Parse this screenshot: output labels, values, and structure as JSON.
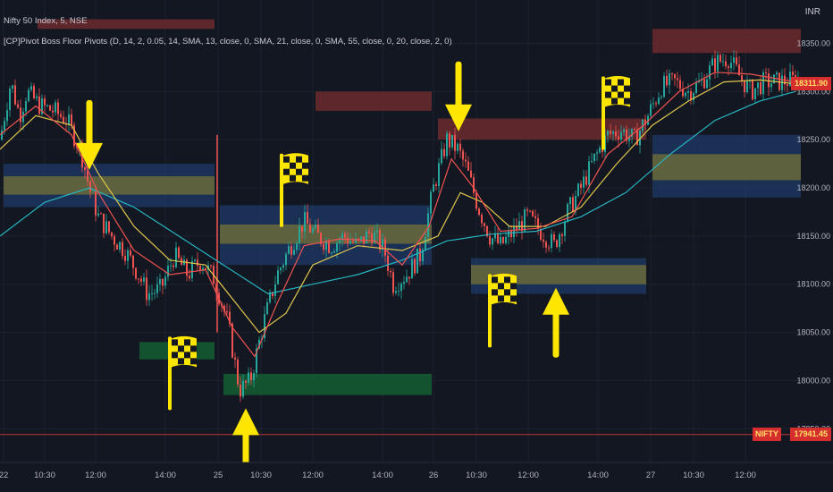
{
  "header": {
    "title": "Nifty 50 Index, 5, NSE",
    "indicator": "[CP]Pivot Boss Floor Pivots (D, 14, 2, 0.05, 14, SMA, 13, close, 0, SMA, 21, close, 0, SMA, 55, close, 0, 20, close, 2, 0)"
  },
  "currency_label": "INR",
  "current_price_label": "18311.90",
  "last_price": {
    "symbol": "NIFTY",
    "value": "17941.45"
  },
  "colors": {
    "background": "#131722",
    "up_candle": "#26a69a",
    "down_candle": "#ef5350",
    "ma_fast": "#ef5350",
    "ma_mid": "#e0c64b",
    "ma_slow": "#26b5c0",
    "annotation": "#ffe600",
    "pivot_blue": "#1e3a66",
    "pivot_yellow": "#6b6a3a",
    "pivot_red": "#6b2a2e",
    "pivot_green": "#145a32"
  },
  "chart_data": {
    "type": "candlestick",
    "symbol": "Nifty 50 Index",
    "interval": "5",
    "exchange": "NSE",
    "y_axis": {
      "ticks": [
        18350,
        18300,
        18250,
        18200,
        18150,
        18100,
        18050,
        18000,
        17950
      ],
      "tick_labels": [
        "18350.00",
        "18300.00",
        "18250.00",
        "18200.00",
        "18150.00",
        "18100.00",
        "18050.00",
        "18000.00",
        "17950.00"
      ],
      "range": [
        17915,
        18395
      ]
    },
    "x_axis": {
      "tick_labels": [
        "22",
        "10:30",
        "12:00",
        "14:00",
        "25",
        "10:30",
        "12:00",
        "14:00",
        "26",
        "10:30",
        "12:00",
        "14:00",
        "27",
        "10:30",
        "12:00"
      ]
    },
    "close_path": [
      [
        0,
        18250
      ],
      [
        12,
        18310
      ],
      [
        22,
        18275
      ],
      [
        30,
        18300
      ],
      [
        45,
        18285
      ],
      [
        60,
        18280
      ],
      [
        75,
        18270
      ],
      [
        90,
        18240
      ],
      [
        100,
        18200
      ],
      [
        110,
        18170
      ],
      [
        125,
        18150
      ],
      [
        140,
        18135
      ],
      [
        155,
        18110
      ],
      [
        165,
        18090
      ],
      [
        180,
        18095
      ],
      [
        195,
        18130
      ],
      [
        210,
        18110
      ],
      [
        225,
        18125
      ],
      [
        240,
        18105
      ],
      [
        255,
        18060
      ],
      [
        268,
        17990
      ],
      [
        280,
        18000
      ],
      [
        295,
        18060
      ],
      [
        310,
        18110
      ],
      [
        325,
        18140
      ],
      [
        340,
        18165
      ],
      [
        355,
        18150
      ],
      [
        370,
        18140
      ],
      [
        385,
        18150
      ],
      [
        400,
        18140
      ],
      [
        415,
        18155
      ],
      [
        430,
        18135
      ],
      [
        440,
        18100
      ],
      [
        455,
        18110
      ],
      [
        470,
        18130
      ],
      [
        485,
        18200
      ],
      [
        500,
        18250
      ],
      [
        512,
        18240
      ],
      [
        522,
        18220
      ],
      [
        535,
        18180
      ],
      [
        548,
        18150
      ],
      [
        560,
        18140
      ],
      [
        575,
        18155
      ],
      [
        590,
        18170
      ],
      [
        605,
        18155
      ],
      [
        620,
        18140
      ],
      [
        635,
        18175
      ],
      [
        650,
        18200
      ],
      [
        665,
        18230
      ],
      [
        680,
        18255
      ],
      [
        695,
        18260
      ],
      [
        710,
        18250
      ],
      [
        725,
        18275
      ],
      [
        740,
        18305
      ],
      [
        755,
        18310
      ],
      [
        770,
        18300
      ],
      [
        785,
        18310
      ],
      [
        800,
        18330
      ],
      [
        815,
        18335
      ],
      [
        828,
        18315
      ],
      [
        840,
        18300
      ],
      [
        855,
        18310
      ],
      [
        870,
        18310
      ],
      [
        890,
        18312
      ]
    ],
    "ma_fast_path": [
      [
        0,
        18255
      ],
      [
        40,
        18285
      ],
      [
        80,
        18255
      ],
      [
        110,
        18195
      ],
      [
        150,
        18135
      ],
      [
        190,
        18110
      ],
      [
        230,
        18115
      ],
      [
        260,
        18055
      ],
      [
        285,
        18025
      ],
      [
        310,
        18080
      ],
      [
        340,
        18140
      ],
      [
        380,
        18147
      ],
      [
        420,
        18145
      ],
      [
        450,
        18120
      ],
      [
        480,
        18160
      ],
      [
        505,
        18230
      ],
      [
        530,
        18200
      ],
      [
        560,
        18155
      ],
      [
        600,
        18158
      ],
      [
        640,
        18170
      ],
      [
        680,
        18235
      ],
      [
        720,
        18265
      ],
      [
        760,
        18300
      ],
      [
        800,
        18320
      ],
      [
        840,
        18318
      ],
      [
        890,
        18310
      ]
    ],
    "ma_mid_path": [
      [
        0,
        18240
      ],
      [
        40,
        18275
      ],
      [
        80,
        18265
      ],
      [
        110,
        18215
      ],
      [
        150,
        18160
      ],
      [
        190,
        18125
      ],
      [
        230,
        18120
      ],
      [
        260,
        18085
      ],
      [
        290,
        18050
      ],
      [
        320,
        18070
      ],
      [
        350,
        18120
      ],
      [
        400,
        18140
      ],
      [
        450,
        18135
      ],
      [
        490,
        18150
      ],
      [
        515,
        18195
      ],
      [
        540,
        18185
      ],
      [
        570,
        18160
      ],
      [
        610,
        18160
      ],
      [
        650,
        18180
      ],
      [
        690,
        18225
      ],
      [
        730,
        18265
      ],
      [
        770,
        18290
      ],
      [
        810,
        18310
      ],
      [
        850,
        18312
      ],
      [
        890,
        18308
      ]
    ],
    "ma_slow_path": [
      [
        0,
        18150
      ],
      [
        50,
        18185
      ],
      [
        100,
        18200
      ],
      [
        150,
        18180
      ],
      [
        200,
        18150
      ],
      [
        250,
        18120
      ],
      [
        300,
        18090
      ],
      [
        350,
        18100
      ],
      [
        400,
        18110
      ],
      [
        450,
        18125
      ],
      [
        500,
        18145
      ],
      [
        550,
        18152
      ],
      [
        600,
        18155
      ],
      [
        650,
        18170
      ],
      [
        700,
        18195
      ],
      [
        750,
        18235
      ],
      [
        800,
        18270
      ],
      [
        850,
        18290
      ],
      [
        890,
        18300
      ]
    ],
    "pivot_zones": [
      {
        "kind": "red",
        "x0": 42,
        "x1": 240,
        "y0": 18365,
        "y1": 18375
      },
      {
        "kind": "blue",
        "x0": 4,
        "x1": 240,
        "y0": 18180,
        "y1": 18225
      },
      {
        "kind": "yellow",
        "x0": 4,
        "x1": 240,
        "y0": 18193,
        "y1": 18212
      },
      {
        "kind": "green",
        "x0": 156,
        "x1": 240,
        "y0": 18022,
        "y1": 18040
      },
      {
        "kind": "red",
        "x0": 353,
        "x1": 483,
        "y0": 18280,
        "y1": 18300
      },
      {
        "kind": "blue",
        "x0": 246,
        "x1": 483,
        "y0": 18120,
        "y1": 18182
      },
      {
        "kind": "yellow",
        "x0": 246,
        "x1": 483,
        "y0": 18142,
        "y1": 18162
      },
      {
        "kind": "green",
        "x0": 250,
        "x1": 483,
        "y0": 17985,
        "y1": 18007
      },
      {
        "kind": "red",
        "x0": 490,
        "x1": 723,
        "y0": 18250,
        "y1": 18272
      },
      {
        "kind": "blue",
        "x0": 527,
        "x1": 723,
        "y0": 18090,
        "y1": 18127
      },
      {
        "kind": "yellow",
        "x0": 527,
        "x1": 723,
        "y0": 18100,
        "y1": 18120
      },
      {
        "kind": "red",
        "x0": 730,
        "x1": 896,
        "y0": 18340,
        "y1": 18365
      },
      {
        "kind": "blue",
        "x0": 730,
        "x1": 896,
        "y0": 18190,
        "y1": 18255
      },
      {
        "kind": "yellow",
        "x0": 730,
        "x1": 896,
        "y0": 18208,
        "y1": 18235
      }
    ],
    "annotations": [
      {
        "kind": "arrow-down",
        "x": 100,
        "y": 18215
      },
      {
        "kind": "arrow-down",
        "x": 513,
        "y": 18255
      },
      {
        "kind": "arrow-up",
        "x": 275,
        "y": 17975
      },
      {
        "kind": "arrow-up",
        "x": 622,
        "y": 18100
      },
      {
        "kind": "flag",
        "x": 190,
        "y": 18040
      },
      {
        "kind": "flag",
        "x": 315,
        "y": 18230
      },
      {
        "kind": "flag",
        "x": 548,
        "y": 18105
      },
      {
        "kind": "flag",
        "x": 675,
        "y": 18310
      }
    ],
    "reference_line": 17944
  }
}
